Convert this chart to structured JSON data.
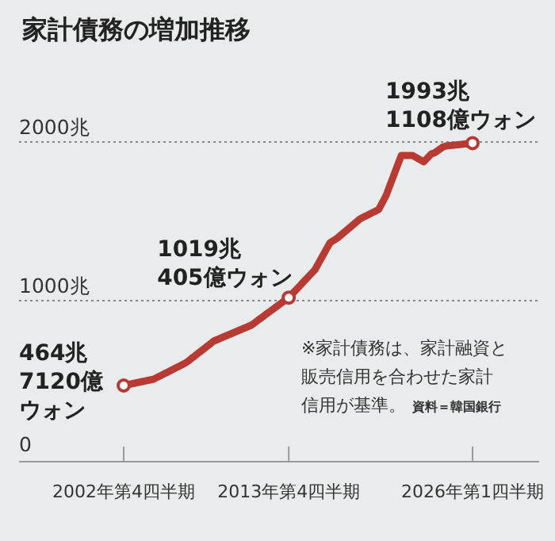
{
  "chart_data": {
    "type": "line",
    "title": "家計債務の増加推移",
    "categories": [
      "2002年第4四半期",
      null,
      null,
      null,
      null,
      null,
      null,
      null,
      null,
      null,
      null,
      null,
      null,
      null,
      null,
      null,
      null,
      null,
      null,
      null,
      null,
      null,
      null,
      null,
      null,
      null,
      null,
      null,
      null,
      null,
      null,
      null,
      null,
      null,
      null,
      null,
      null,
      null,
      null,
      null,
      null,
      null,
      null,
      null,
      "2013年第4四半期",
      null,
      null,
      null,
      null,
      null,
      null,
      null,
      null,
      null,
      null,
      null,
      null,
      null,
      null,
      null,
      null,
      null,
      null,
      null,
      null,
      null,
      null,
      null,
      null,
      null,
      null,
      null,
      null,
      null,
      null,
      null,
      null,
      null,
      null,
      null,
      null,
      null,
      null,
      null,
      null,
      null,
      null,
      null,
      null,
      null,
      null,
      null,
      null,
      "2026年第1四半期"
    ],
    "ylim": [
      0,
      2000
    ],
    "yticks": [
      0,
      {
        "value": 1000,
        "label": "1000兆"
      },
      {
        "value": 2000,
        "label": "2000兆"
      }
    ],
    "grid": "y",
    "marker": "none",
    "line_style": "solid",
    "series": [
      {
        "color": "#b93a33",
        "values": [
          465,
          470,
          475,
          480,
          485,
          490,
          495,
          500,
          505,
          517,
          529,
          541,
          553,
          565,
          577,
          589,
          601,
          615,
          634,
          652,
          671,
          689,
          708,
          726,
          745,
          755,
          765,
          775,
          785,
          795,
          805,
          815,
          825,
          835,
          845,
          862,
          880,
          897,
          915,
          932,
          949,
          967,
          984,
          1002,
          1019,
          1044,
          1069,
          1094,
          1120,
          1145,
          1170,
          1195,
          1238,
          1280,
          1323,
          1365,
          1380,
          1395,
          1415,
          1435,
          1455,
          1475,
          1495,
          1515,
          1527,
          1539,
          1551,
          1563,
          1575,
          1620,
          1665,
          1728,
          1790,
          1853,
          1915,
          1915,
          1915,
          1915,
          1902,
          1888,
          1875,
          1900,
          1925,
          1933,
          1950,
          1967,
          1975,
          1978,
          1980,
          1983,
          1985,
          1988,
          1990,
          1993
        ]
      },
      {
        "type": "scatter",
        "marker": "circle",
        "color": "#b93a33",
        "x": [
          "2002年第4四半期",
          "2013年第4四半期",
          "2026年第1四半期"
        ],
        "values": [
          465,
          1019,
          1993
        ]
      }
    ],
    "annotations": [
      {
        "text": "464兆7120億ウォン",
        "x": "2002年第4四半期",
        "y": 465
      },
      {
        "text": "1019兆405億ウォン",
        "x": "2013年第4四半期",
        "y": 1019
      },
      {
        "text": "1993兆1108億ウォン",
        "x": "2026年第1四半期",
        "y": 1993
      },
      "※家計債務は、家計融資と販売信用を合わせた家計信用が基準。",
      "資料＝韓国銀行"
    ]
  }
}
